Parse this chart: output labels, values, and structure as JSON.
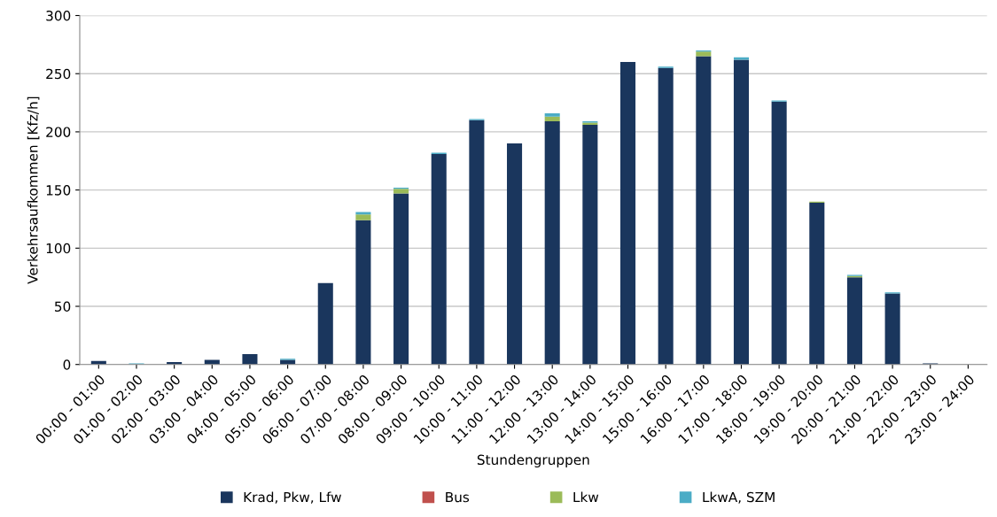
{
  "chart_data": {
    "type": "bar",
    "stacked": true,
    "xlabel": "Stundengruppen",
    "ylabel": "Verkehrsaufkommen [Kfz/h]",
    "categories": [
      "00:00 - 01:00",
      "01:00 - 02:00",
      "02:00 - 03:00",
      "03:00 - 04:00",
      "04:00 - 05:00",
      "05:00 - 06:00",
      "06:00 - 07:00",
      "07:00 - 08:00",
      "08:00 - 09:00",
      "09:00 - 10:00",
      "10:00 - 11:00",
      "11:00 - 12:00",
      "12:00 - 13:00",
      "13:00 - 14:00",
      "14:00 - 15:00",
      "15:00 - 16:00",
      "16:00 - 17:00",
      "17:00 - 18:00",
      "18:00 - 19:00",
      "19:00 - 20:00",
      "20:00 - 21:00",
      "21:00 - 22:00",
      "22:00 - 23:00",
      "23:00 - 24:00"
    ],
    "series": [
      {
        "name": "Krad, Pkw, Lfw",
        "color": "#1a365d",
        "values": [
          3,
          0,
          2,
          4,
          9,
          4,
          70,
          124,
          147,
          181,
          210,
          190,
          209,
          206,
          260,
          255,
          265,
          262,
          226,
          139,
          75,
          61,
          1,
          0
        ]
      },
      {
        "name": "Bus",
        "color": "#c0504d",
        "values": [
          0,
          0,
          0,
          0,
          0,
          0,
          0,
          0,
          0,
          0,
          0,
          0,
          0,
          0,
          0,
          0,
          0,
          0,
          0,
          0,
          0,
          0,
          0,
          0
        ]
      },
      {
        "name": "Lkw",
        "color": "#9bbb59",
        "values": [
          0,
          0,
          0,
          0,
          0,
          0,
          0,
          5,
          4,
          0,
          0,
          0,
          4,
          2,
          0,
          0,
          4,
          0,
          0,
          1,
          1,
          0,
          0,
          0
        ]
      },
      {
        "name": "LkwA, SZM",
        "color": "#4bacc6",
        "values": [
          0,
          1,
          0,
          0,
          0,
          1,
          0,
          2,
          1,
          1,
          1,
          0,
          3,
          1,
          0,
          1,
          1,
          2,
          1,
          0,
          1,
          1,
          0,
          0
        ]
      }
    ],
    "ylim": [
      0,
      300
    ],
    "yticks": [
      0,
      50,
      100,
      150,
      200,
      250,
      300
    ],
    "grid": "y",
    "legend": "bottom"
  }
}
